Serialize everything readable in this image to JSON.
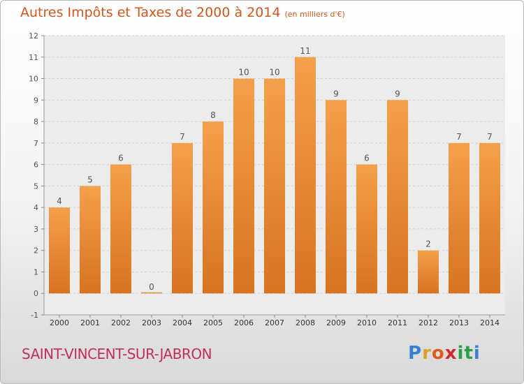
{
  "header": {
    "title": "Autres Impôts et Taxes de 2000 à 2014",
    "subtitle": "(en milliers d'€)"
  },
  "footer": {
    "name": "SAINT-VINCENT-SUR-JABRON",
    "logo": [
      "P",
      "r",
      "o",
      "x",
      "i",
      "t",
      "i"
    ],
    "logo_colors": [
      "#3a7fd0",
      "#e0a020",
      "#e05a1a",
      "#d22a2a",
      "#2aa043",
      "#2aa043",
      "#3a7fd0"
    ]
  },
  "chart_data": {
    "type": "bar",
    "categories": [
      "2000",
      "2001",
      "2002",
      "2003",
      "2004",
      "2005",
      "2006",
      "2007",
      "2008",
      "2009",
      "2010",
      "2011",
      "2012",
      "2013",
      "2014"
    ],
    "values": [
      4,
      5,
      6,
      0,
      7,
      8,
      10,
      10,
      11,
      9,
      6,
      9,
      2,
      7,
      7
    ],
    "data_labels": [
      "4",
      "5",
      "6",
      "0",
      "7",
      "8",
      "10",
      "10",
      "11",
      "9",
      "6",
      "9",
      "2",
      "7",
      "7"
    ],
    "y_ticks": [
      "-1",
      "0",
      "1",
      "2",
      "3",
      "4",
      "5",
      "6",
      "7",
      "8",
      "9",
      "10",
      "11",
      "12"
    ],
    "ylim": [
      -1,
      12
    ],
    "grid": "horizontal dashed",
    "colors": {
      "bar": "#f4a04a",
      "bar_dark": "#d8731f",
      "label": "#555555",
      "title": "#d2571d"
    }
  }
}
